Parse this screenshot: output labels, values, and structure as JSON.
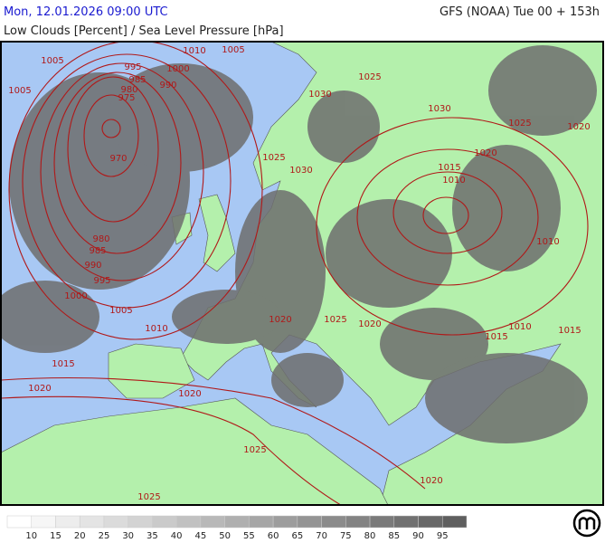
{
  "header": {
    "datetime": "Mon, 12.01.2026 09:00 UTC",
    "model": "GFS (NOAA) Tue 00 + 153h",
    "title": "Low Clouds [Percent] / Sea Level Pressure [hPa]"
  },
  "isobar_labels": [
    "1005",
    "1005",
    "995",
    "1000",
    "985",
    "990",
    "980",
    "975",
    "1010",
    "1005",
    "970",
    "980",
    "985",
    "990",
    "995",
    "1000",
    "1005",
    "1010",
    "1015",
    "1020",
    "1020",
    "1025",
    "1025",
    "1030",
    "1025",
    "1030",
    "1025",
    "1020",
    "1025",
    "1030",
    "1020",
    "1015",
    "1010",
    "1010",
    "1020",
    "1025",
    "1020",
    "1010",
    "1015",
    "1015",
    "1020"
  ],
  "legend": {
    "labels": [
      "10",
      "15",
      "20",
      "25",
      "30",
      "35",
      "40",
      "45",
      "50",
      "55",
      "60",
      "65",
      "70",
      "75",
      "80",
      "85",
      "90",
      "95"
    ]
  }
}
